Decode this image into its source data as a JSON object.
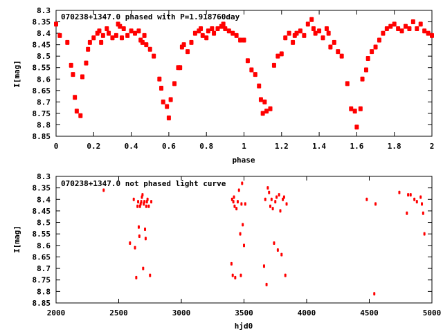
{
  "chart_data": [
    {
      "type": "scatter",
      "title": "070238+1347.0 phased with P=1.918760day",
      "xlabel": "phase",
      "ylabel": "I[mag]",
      "xlim": [
        0,
        2
      ],
      "ylim": [
        8.85,
        8.3
      ],
      "y_inverted": true,
      "xticks": [
        "0",
        "0.2",
        "0.4",
        "0.6",
        "0.8",
        "1",
        "1.2",
        "1.4",
        "1.6",
        "1.8",
        "2"
      ],
      "yticks": [
        "8.3",
        "8.35",
        "8.4",
        "8.45",
        "8.5",
        "8.55",
        "8.6",
        "8.65",
        "8.7",
        "8.75",
        "8.8",
        "8.85"
      ],
      "marker_color": "#ff0000",
      "x": [
        0.0,
        0.02,
        0.06,
        0.08,
        0.09,
        0.1,
        0.11,
        0.13,
        0.14,
        0.16,
        0.17,
        0.18,
        0.2,
        0.22,
        0.23,
        0.24,
        0.25,
        0.27,
        0.28,
        0.3,
        0.32,
        0.33,
        0.34,
        0.35,
        0.36,
        0.38,
        0.4,
        0.42,
        0.44,
        0.45,
        0.46,
        0.47,
        0.48,
        0.5,
        0.52,
        0.55,
        0.56,
        0.57,
        0.59,
        0.6,
        0.61,
        0.63,
        0.65,
        0.66,
        0.67,
        0.68,
        0.7,
        0.72,
        0.74,
        0.76,
        0.77,
        0.78,
        0.8,
        0.81,
        0.83,
        0.84,
        0.86,
        0.88,
        0.89,
        0.9,
        0.92,
        0.94,
        0.96,
        0.98,
        1.0,
        1.02,
        1.04,
        1.06,
        1.08,
        1.09,
        1.1,
        1.11,
        1.12,
        1.14,
        1.16,
        1.18,
        1.2,
        1.22,
        1.24,
        1.26,
        1.27,
        1.28,
        1.3,
        1.32,
        1.34,
        1.36,
        1.37,
        1.38,
        1.4,
        1.42,
        1.44,
        1.45,
        1.46,
        1.48,
        1.5,
        1.52,
        1.55,
        1.57,
        1.59,
        1.6,
        1.62,
        1.63,
        1.65,
        1.66,
        1.68,
        1.7,
        1.72,
        1.74,
        1.76,
        1.78,
        1.8,
        1.82,
        1.84,
        1.86,
        1.88,
        1.9,
        1.92,
        1.94,
        1.96,
        1.98,
        2.0
      ],
      "y": [
        8.36,
        8.41,
        8.44,
        8.54,
        8.58,
        8.68,
        8.74,
        8.76,
        8.59,
        8.53,
        8.47,
        8.44,
        8.42,
        8.4,
        8.39,
        8.44,
        8.41,
        8.38,
        8.4,
        8.42,
        8.41,
        8.36,
        8.37,
        8.42,
        8.38,
        8.41,
        8.39,
        8.4,
        8.39,
        8.43,
        8.44,
        8.41,
        8.45,
        8.47,
        8.5,
        8.6,
        8.64,
        8.7,
        8.72,
        8.77,
        8.69,
        8.62,
        8.55,
        8.55,
        8.46,
        8.45,
        8.48,
        8.44,
        8.4,
        8.39,
        8.38,
        8.41,
        8.42,
        8.39,
        8.38,
        8.4,
        8.38,
        8.37,
        8.36,
        8.38,
        8.39,
        8.4,
        8.41,
        8.43,
        8.43,
        8.52,
        8.56,
        8.58,
        8.63,
        8.69,
        8.75,
        8.7,
        8.74,
        8.73,
        8.54,
        8.5,
        8.49,
        8.42,
        8.4,
        8.44,
        8.41,
        8.4,
        8.39,
        8.41,
        8.36,
        8.34,
        8.38,
        8.4,
        8.39,
        8.42,
        8.38,
        8.4,
        8.46,
        8.44,
        8.48,
        8.5,
        8.62,
        8.73,
        8.74,
        8.81,
        8.73,
        8.6,
        8.56,
        8.51,
        8.48,
        8.46,
        8.43,
        8.4,
        8.38,
        8.37,
        8.36,
        8.38,
        8.39,
        8.37,
        8.38,
        8.35,
        8.38,
        8.36,
        8.39,
        8.4,
        8.41
      ]
    },
    {
      "type": "scatter",
      "title": "070238+1347.0 not phased light curve",
      "xlabel": "hjd0",
      "ylabel": "I[mag]",
      "xlim": [
        2000,
        5000
      ],
      "ylim": [
        8.85,
        8.3
      ],
      "y_inverted": true,
      "xticks": [
        "2000",
        "2500",
        "3000",
        "3500",
        "4000",
        "4500",
        "5000"
      ],
      "yticks": [
        "8.3",
        "8.35",
        "8.4",
        "8.45",
        "8.5",
        "8.55",
        "8.6",
        "8.65",
        "8.7",
        "8.75",
        "8.8",
        "8.85"
      ],
      "marker_color": "#ff0000",
      "x": [
        2380,
        2590,
        2620,
        2630,
        2640,
        2650,
        2655,
        2660,
        2665,
        2670,
        2675,
        2680,
        2685,
        2690,
        2695,
        2700,
        2705,
        2710,
        2715,
        2720,
        2725,
        2730,
        2740,
        2750,
        2760,
        3400,
        3405,
        3410,
        3415,
        3420,
        3425,
        3430,
        3440,
        3450,
        3460,
        3470,
        3475,
        3480,
        3485,
        3490,
        3500,
        3510,
        3660,
        3670,
        3680,
        3690,
        3700,
        3710,
        3720,
        3730,
        3740,
        3750,
        3760,
        3770,
        3780,
        3790,
        3800,
        3810,
        3820,
        3830,
        3840,
        4480,
        4540,
        4550,
        4740,
        4800,
        4810,
        4830,
        4860,
        4880,
        4910,
        4920,
        4930,
        4940
      ],
      "y": [
        8.36,
        8.59,
        8.4,
        8.61,
        8.74,
        8.43,
        8.41,
        8.52,
        8.56,
        8.43,
        8.42,
        8.41,
        8.39,
        8.38,
        8.7,
        8.42,
        8.41,
        8.53,
        8.57,
        8.43,
        8.41,
        8.4,
        8.43,
        8.73,
        8.41,
        8.68,
        8.4,
        8.73,
        8.41,
        8.39,
        8.43,
        8.74,
        8.44,
        8.41,
        8.36,
        8.55,
        8.73,
        8.42,
        8.33,
        8.51,
        8.6,
        8.42,
        8.69,
        8.4,
        8.77,
        8.35,
        8.37,
        8.43,
        8.4,
        8.44,
        8.59,
        8.41,
        8.39,
        8.62,
        8.38,
        8.45,
        8.64,
        8.4,
        8.39,
        8.73,
        8.42,
        8.4,
        8.81,
        8.42,
        8.37,
        8.46,
        8.38,
        8.38,
        8.4,
        8.41,
        8.39,
        8.42,
        8.46,
        8.55
      ],
      "y_extra_upper": [
        8.71,
        8.75
      ]
    }
  ]
}
